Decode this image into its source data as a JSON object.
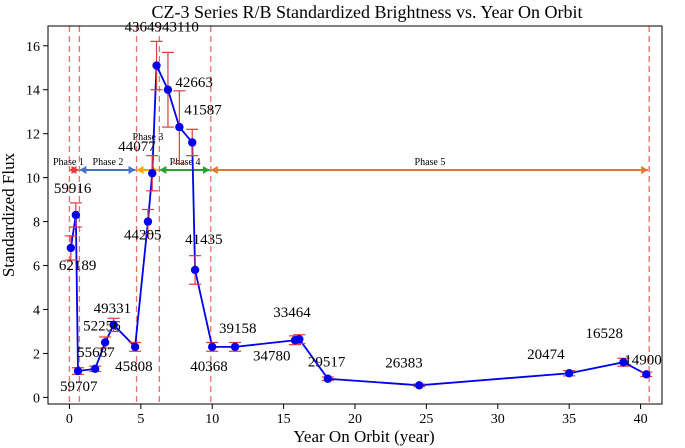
{
  "chart_data": {
    "type": "line",
    "title": "CZ-3 Series R/B Standardized Brightness vs. Year On Orbit",
    "xlabel": "Year On Orbit (year)",
    "ylabel": "Standardized Flux",
    "xlim": [
      -1.5,
      41.5
    ],
    "ylim": [
      -0.3,
      16.9
    ],
    "xticks": [
      0,
      5,
      10,
      15,
      20,
      25,
      30,
      35,
      40
    ],
    "yticks": [
      0,
      2,
      4,
      6,
      8,
      10,
      12,
      14,
      16
    ],
    "series": [
      {
        "name": "Standardized Flux",
        "color": "#0000ee",
        "errorbar_color": "#e03a3a",
        "points": [
          {
            "x": 0.1,
            "y": 6.8,
            "err": 0.55,
            "label": "62189"
          },
          {
            "x": 0.45,
            "y": 8.3,
            "err": 0.55,
            "label": "59916"
          },
          {
            "x": 0.6,
            "y": 1.2,
            "err": 0.15,
            "label": "59707"
          },
          {
            "x": 1.8,
            "y": 1.3,
            "err": 0.12,
            "label": "55687"
          },
          {
            "x": 2.5,
            "y": 2.5,
            "err": 0.25,
            "label": "52256"
          },
          {
            "x": 3.1,
            "y": 3.3,
            "err": 0.3,
            "label": "49331"
          },
          {
            "x": 4.6,
            "y": 2.3,
            "err": 0.2,
            "label": "45808"
          },
          {
            "x": 5.5,
            "y": 8.0,
            "err": 0.55,
            "label": "44205"
          },
          {
            "x": 5.8,
            "y": 10.2,
            "err": 0.8,
            "label": "44077"
          },
          {
            "x": 6.1,
            "y": 15.1,
            "err": 1.1,
            "label": "43649"
          },
          {
            "x": 6.9,
            "y": 14.0,
            "err": 1.7,
            "label": "43110"
          },
          {
            "x": 7.7,
            "y": 12.3,
            "err": 1.65,
            "label": "42663"
          },
          {
            "x": 8.6,
            "y": 11.6,
            "err": 0.6,
            "label": "41587"
          },
          {
            "x": 8.8,
            "y": 5.8,
            "err": 0.65,
            "label": "41435"
          },
          {
            "x": 10.0,
            "y": 2.3,
            "err": 0.2,
            "label": "40368"
          },
          {
            "x": 11.6,
            "y": 2.3,
            "err": 0.2,
            "label": "39158"
          },
          {
            "x": 15.8,
            "y": 2.6,
            "err": 0.2,
            "label": "34780"
          },
          {
            "x": 16.1,
            "y": 2.65,
            "err": 0.2,
            "label": "33464"
          },
          {
            "x": 18.1,
            "y": 0.85,
            "err": 0.08,
            "label": "29517"
          },
          {
            "x": 24.5,
            "y": 0.55,
            "err": 0.06,
            "label": "26383"
          },
          {
            "x": 35.0,
            "y": 1.1,
            "err": 0.12,
            "label": "20474"
          },
          {
            "x": 38.8,
            "y": 1.6,
            "err": 0.18,
            "label": "16528"
          },
          {
            "x": 40.4,
            "y": 1.05,
            "err": 0.1,
            "label": "14900"
          }
        ]
      }
    ],
    "phase_boundaries": [
      0.0,
      0.7,
      4.7,
      6.3,
      9.9,
      40.6
    ],
    "phases": [
      {
        "label": "Phase 1",
        "x_start": 0.0,
        "x_end": 0.7,
        "y": 10.35,
        "color": "#e03a3a"
      },
      {
        "label": "Phase 2",
        "x_start": 0.7,
        "x_end": 4.7,
        "y": 10.35,
        "color": "#4472c4"
      },
      {
        "label": "Phase 3",
        "x_start": 4.7,
        "x_end": 6.3,
        "y": 10.35,
        "color": "#ffa500"
      },
      {
        "label": "Phase 4",
        "x_start": 6.3,
        "x_end": 9.9,
        "y": 10.35,
        "color": "#2ca02c"
      },
      {
        "label": "Phase 5",
        "x_start": 9.9,
        "x_end": 40.6,
        "y": 10.35,
        "color": "#e07a30"
      }
    ]
  }
}
